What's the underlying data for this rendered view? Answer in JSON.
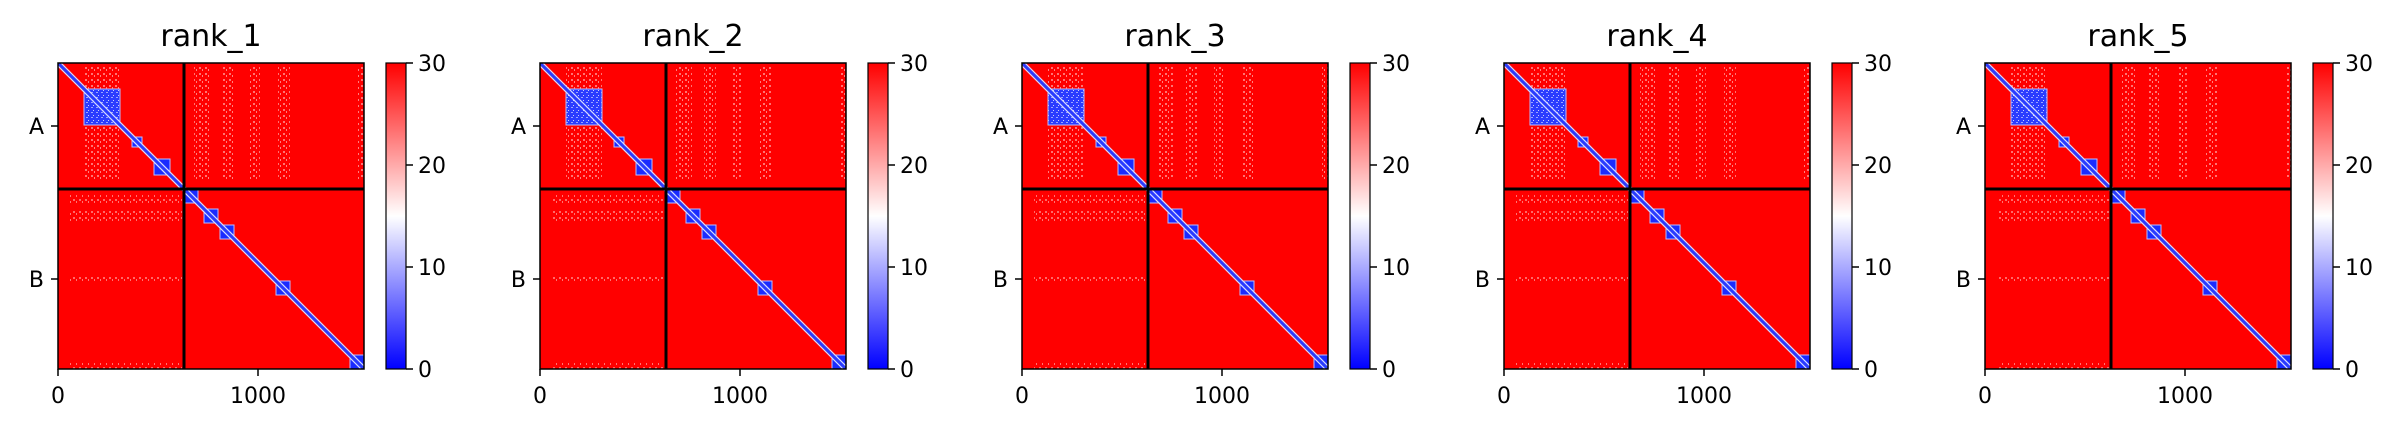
{
  "chart_data": {
    "type": "heatmap",
    "grid": false,
    "colormap": {
      "low": "#0000ff",
      "mid": "#ffffff",
      "high": "#ff0000"
    },
    "color_range": [
      0,
      30
    ],
    "colorbar_ticks": [
      "0",
      "10",
      "20",
      "30"
    ],
    "x_ticks": [
      {
        "value": 0,
        "label": "0"
      },
      {
        "value": 1000,
        "label": "1000"
      }
    ],
    "x_range": [
      0,
      1530
    ],
    "chain_boundary": 630,
    "chains": [
      {
        "label": "A",
        "center": 315
      },
      {
        "label": "B",
        "center": 1080
      }
    ],
    "panels": [
      {
        "title": "rank_1",
        "domain_blocks": [
          [
            130,
            310
          ],
          [
            370,
            420
          ],
          [
            480,
            560
          ],
          [
            630,
            700
          ],
          [
            730,
            800
          ],
          [
            810,
            880
          ],
          [
            1090,
            1160
          ],
          [
            1460,
            1530
          ]
        ]
      },
      {
        "title": "rank_2",
        "domain_blocks": [
          [
            130,
            310
          ],
          [
            370,
            420
          ],
          [
            480,
            560
          ],
          [
            630,
            700
          ],
          [
            730,
            800
          ],
          [
            810,
            880
          ],
          [
            1090,
            1160
          ],
          [
            1460,
            1530
          ]
        ]
      },
      {
        "title": "rank_3",
        "domain_blocks": [
          [
            130,
            310
          ],
          [
            370,
            420
          ],
          [
            480,
            560
          ],
          [
            630,
            700
          ],
          [
            730,
            800
          ],
          [
            810,
            880
          ],
          [
            1090,
            1160
          ],
          [
            1460,
            1530
          ]
        ]
      },
      {
        "title": "rank_4",
        "domain_blocks": [
          [
            130,
            310
          ],
          [
            370,
            420
          ],
          [
            480,
            560
          ],
          [
            630,
            700
          ],
          [
            730,
            800
          ],
          [
            810,
            880
          ],
          [
            1090,
            1160
          ],
          [
            1460,
            1530
          ]
        ]
      },
      {
        "title": "rank_5",
        "domain_blocks": [
          [
            130,
            310
          ],
          [
            370,
            420
          ],
          [
            480,
            560
          ],
          [
            630,
            700
          ],
          [
            730,
            800
          ],
          [
            810,
            880
          ],
          [
            1090,
            1160
          ],
          [
            1460,
            1530
          ]
        ]
      }
    ]
  }
}
